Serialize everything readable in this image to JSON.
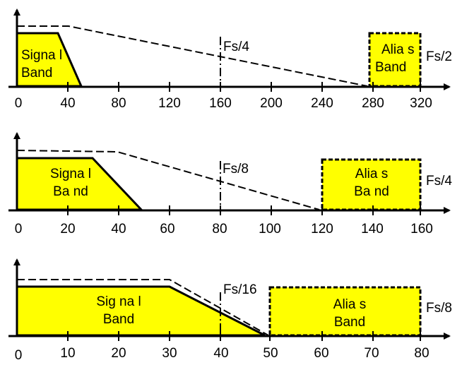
{
  "panels": [
    {
      "ticks": [
        "0",
        "40",
        "80",
        "120",
        "160",
        "200",
        "240",
        "280",
        "320"
      ],
      "marker_label": "Fs/4",
      "end_label": "Fs/2",
      "signal_label": [
        "Signa l",
        "Band"
      ],
      "alias_label": [
        "Alia s",
        "Band"
      ]
    },
    {
      "ticks": [
        "0",
        "20",
        "40",
        "60",
        "80",
        "100",
        "120",
        "140",
        "160"
      ],
      "marker_label": "Fs/8",
      "end_label": "Fs/4",
      "signal_label": [
        "Signa l",
        "Ba nd"
      ],
      "alias_label": [
        "Alia s",
        "Ba nd"
      ]
    },
    {
      "ticks": [
        "0",
        "10",
        "20",
        "30",
        "40",
        "50",
        "60",
        "70",
        "80"
      ],
      "marker_label": "Fs/16",
      "end_label": "Fs/8",
      "signal_label": [
        "Sig na l",
        "Band"
      ],
      "alias_label": [
        "Alia s",
        "Band"
      ]
    }
  ],
  "colors": {
    "band_fill": "#ffff00",
    "line": "#000000"
  }
}
